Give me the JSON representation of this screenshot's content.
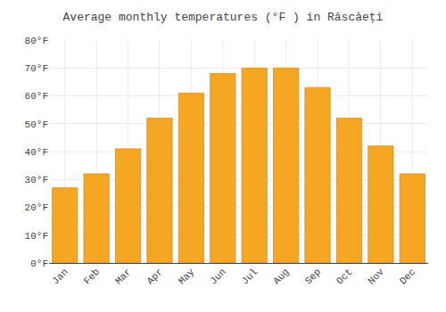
{
  "chart_data": {
    "type": "bar",
    "title": "Average monthly temperatures (°F ) in Răscăeți",
    "categories": [
      "Jan",
      "Feb",
      "Mar",
      "Apr",
      "May",
      "Jun",
      "Jul",
      "Aug",
      "Sep",
      "Oct",
      "Nov",
      "Dec"
    ],
    "values": [
      27,
      32,
      41,
      52,
      61,
      68,
      70,
      70,
      63,
      52,
      42,
      32
    ],
    "color": "#F5A623",
    "ylim": [
      0,
      80
    ],
    "yticks": [
      {
        "value": 0,
        "label": "0°F"
      },
      {
        "value": 10,
        "label": "10°F"
      },
      {
        "value": 20,
        "label": "20°F"
      },
      {
        "value": 30,
        "label": "30°F"
      },
      {
        "value": 40,
        "label": "40°F"
      },
      {
        "value": 50,
        "label": "50°F"
      },
      {
        "value": 60,
        "label": "60°F"
      },
      {
        "value": 70,
        "label": "70°F"
      },
      {
        "value": 80,
        "label": "80°F"
      }
    ],
    "grid": true
  }
}
